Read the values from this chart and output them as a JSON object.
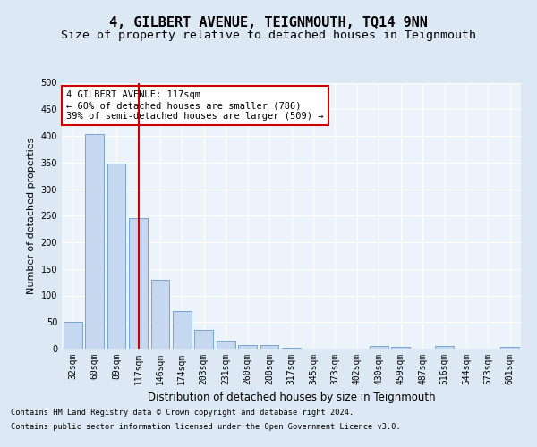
{
  "title": "4, GILBERT AVENUE, TEIGNMOUTH, TQ14 9NN",
  "subtitle": "Size of property relative to detached houses in Teignmouth",
  "xlabel": "Distribution of detached houses by size in Teignmouth",
  "ylabel": "Number of detached properties",
  "categories": [
    "32sqm",
    "60sqm",
    "89sqm",
    "117sqm",
    "146sqm",
    "174sqm",
    "203sqm",
    "231sqm",
    "260sqm",
    "288sqm",
    "317sqm",
    "345sqm",
    "373sqm",
    "402sqm",
    "430sqm",
    "459sqm",
    "487sqm",
    "516sqm",
    "544sqm",
    "573sqm",
    "601sqm"
  ],
  "values": [
    51,
    403,
    348,
    246,
    130,
    70,
    36,
    15,
    7,
    6,
    2,
    0,
    0,
    0,
    5,
    3,
    0,
    5,
    0,
    0,
    4
  ],
  "bar_color": "#c5d8f0",
  "bar_edge_color": "#6699cc",
  "vline_x_index": 3,
  "vline_color": "#cc0000",
  "annotation_text": "4 GILBERT AVENUE: 117sqm\n← 60% of detached houses are smaller (786)\n39% of semi-detached houses are larger (509) →",
  "annotation_box_color": "#ffffff",
  "annotation_box_edge_color": "#cc0000",
  "ylim": [
    0,
    500
  ],
  "yticks": [
    0,
    50,
    100,
    150,
    200,
    250,
    300,
    350,
    400,
    450,
    500
  ],
  "bg_color": "#dce9f5",
  "plot_bg_color": "#edf3fb",
  "footer_line1": "Contains HM Land Registry data © Crown copyright and database right 2024.",
  "footer_line2": "Contains public sector information licensed under the Open Government Licence v3.0.",
  "title_fontsize": 11,
  "subtitle_fontsize": 9.5,
  "xlabel_fontsize": 8.5,
  "ylabel_fontsize": 8,
  "tick_fontsize": 7,
  "ann_fontsize": 7.5
}
